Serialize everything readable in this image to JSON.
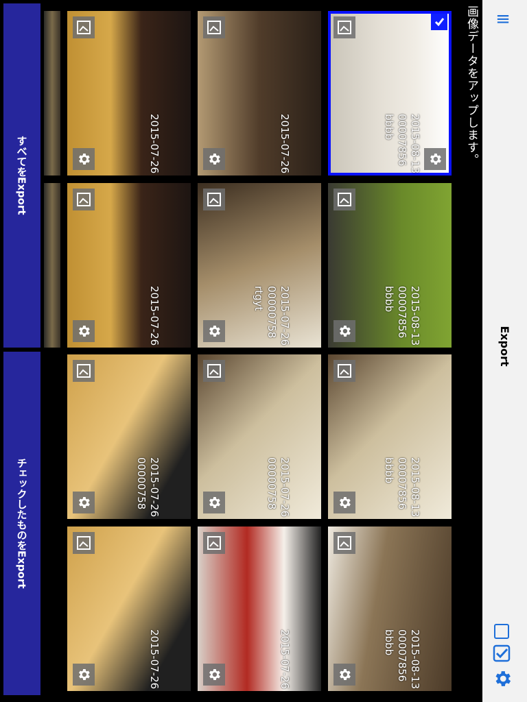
{
  "nav": {
    "title": "Export",
    "menu_icon": "menu-icon",
    "checkbox_icon": "checkbox-icon",
    "checkmark_icon": "checkmark-icon",
    "settings_icon": "gear-icon"
  },
  "info": {
    "text": "画像データをアップします。"
  },
  "buttons": {
    "export_all": "すべてをExport",
    "export_checked": "チェックしたものをExport"
  },
  "tiles": [
    {
      "date": "2015-08-13",
      "id": "00007856",
      "name": "bbbb",
      "selected": true
    },
    {
      "date": "2015-08-13",
      "id": "00007856",
      "name": "bbbb"
    },
    {
      "date": "2015-08-13",
      "id": "00007856",
      "name": "bbbb"
    },
    {
      "date": "2015-08-13",
      "id": "00007856",
      "name": "bbbb"
    },
    {
      "date": "2015-07-26",
      "id": "",
      "name": ""
    },
    {
      "date": "2015-07-26",
      "id": "00000758",
      "name": "rtgyt"
    },
    {
      "date": "2015-07-26",
      "id": "00000758",
      "name": ""
    },
    {
      "date": "2015-07-26",
      "id": "",
      "name": ""
    },
    {
      "date": "2015-07-26",
      "id": "",
      "name": ""
    },
    {
      "date": "2015-07-26",
      "id": "",
      "name": ""
    },
    {
      "date": "2015-07-26",
      "id": "00000758",
      "name": ""
    },
    {
      "date": "2015-07-26",
      "id": "",
      "name": ""
    }
  ]
}
